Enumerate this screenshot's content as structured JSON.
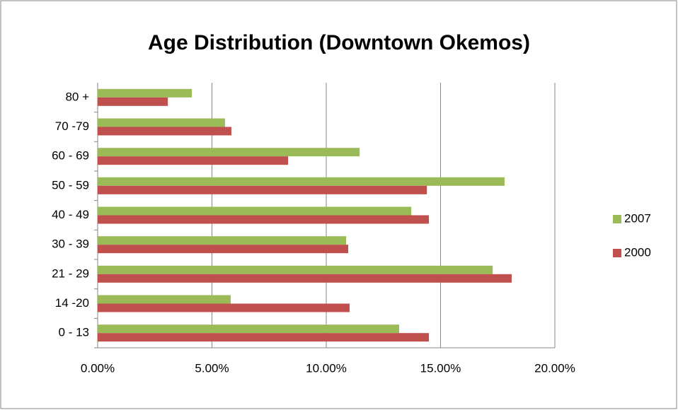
{
  "chart_data": {
    "type": "hbar",
    "title": "Age Distribution (Downtown Okemos)",
    "categories": [
      "0 - 13",
      "14 -20",
      "21 - 29",
      "30 - 39",
      "40 - 49",
      "50 - 59",
      "60 - 69",
      "70 -79",
      "80 +"
    ],
    "series": [
      {
        "name": "2007",
        "color": "#9bbb59",
        "values": [
          13.19,
          5.82,
          17.28,
          10.87,
          13.72,
          17.8,
          11.46,
          5.57,
          4.12
        ]
      },
      {
        "name": "2000",
        "color": "#c0504d",
        "values": [
          14.49,
          11.02,
          18.11,
          10.96,
          14.49,
          14.4,
          8.33,
          5.85,
          3.07
        ]
      }
    ],
    "xlim": [
      0,
      20
    ],
    "xticks": [
      {
        "value": 0,
        "label": "0.00%"
      },
      {
        "value": 5,
        "label": "5.00%"
      },
      {
        "value": 10,
        "label": "10.00%"
      },
      {
        "value": 15,
        "label": "15.00%"
      },
      {
        "value": 20,
        "label": "20.00%"
      }
    ],
    "grid": true,
    "legend": "right"
  }
}
